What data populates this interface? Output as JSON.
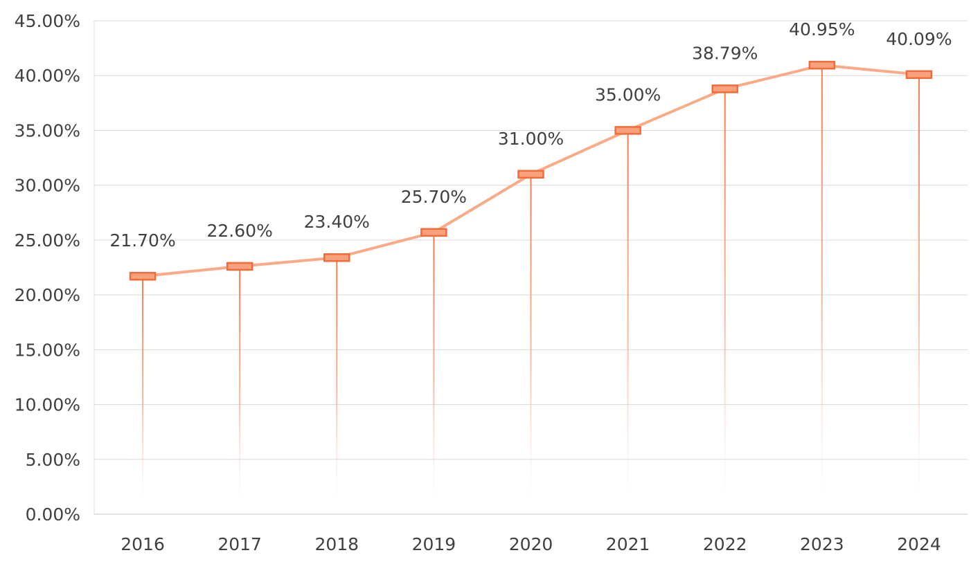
{
  "chart_data": {
    "type": "line",
    "title": "",
    "xlabel": "",
    "ylabel": "",
    "categories": [
      "2016",
      "2017",
      "2018",
      "2019",
      "2020",
      "2021",
      "2022",
      "2023",
      "2024"
    ],
    "values": [
      21.7,
      22.6,
      23.4,
      25.7,
      31.0,
      35.0,
      38.79,
      40.95,
      40.09
    ],
    "data_labels": [
      "21.70%",
      "22.60%",
      "23.40%",
      "25.70%",
      "31.00%",
      "35.00%",
      "38.79%",
      "40.95%",
      "40.09%"
    ],
    "ylim": [
      0,
      45
    ],
    "yticks": [
      0,
      5,
      10,
      15,
      20,
      25,
      30,
      35,
      40,
      45
    ],
    "ytick_labels": [
      "0.00%",
      "5.00%",
      "10.00%",
      "15.00%",
      "20.00%",
      "25.00%",
      "30.00%",
      "35.00%",
      "40.00%",
      "45.00%"
    ],
    "grid": true,
    "legend": "none",
    "colors": {
      "line": "#FBAA88",
      "marker_border": "#F26B38",
      "marker_fill": "#F9A07C",
      "drop_line": "#F47A4A",
      "grid": "#D9D9D9",
      "text": "#404040"
    }
  }
}
